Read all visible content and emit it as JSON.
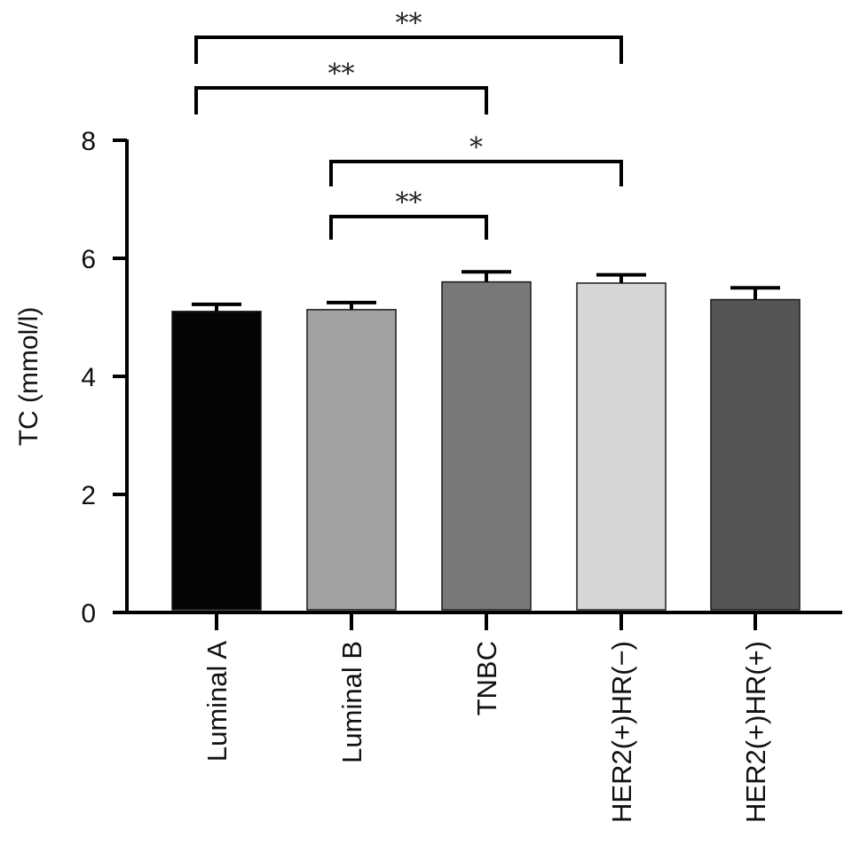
{
  "chart_data": {
    "type": "bar",
    "categories": [
      "Luminal A",
      "Luminal B",
      "TNBC",
      "HER2(+)HR(−)",
      "HER2(+)HR(+)"
    ],
    "values": [
      5.1,
      5.13,
      5.6,
      5.58,
      5.3
    ],
    "errors": [
      0.12,
      0.12,
      0.17,
      0.14,
      0.2
    ],
    "bar_colors": [
      "#050505",
      "#a1a1a1",
      "#787878",
      "#d6d6d6",
      "#555555"
    ],
    "xlabel": "",
    "ylabel": "TC (mmol/l)",
    "ylim": [
      0,
      8
    ],
    "yticks": [
      0,
      2,
      4,
      6,
      8
    ],
    "grid": false,
    "significance": [
      {
        "from": 0,
        "to": 3,
        "label": "**"
      },
      {
        "from": 0,
        "to": 2,
        "label": "**"
      },
      {
        "from": 1,
        "to": 3,
        "label": "*"
      },
      {
        "from": 1,
        "to": 2,
        "label": "**"
      }
    ]
  }
}
